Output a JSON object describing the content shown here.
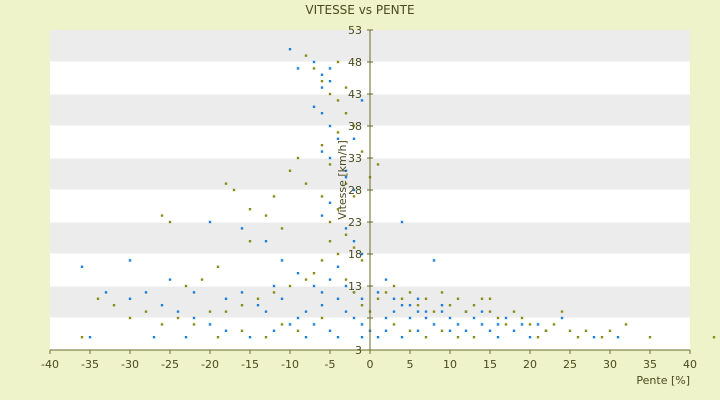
{
  "chart_data": {
    "type": "scatter",
    "title": "VITESSE vs PENTE",
    "xlabel": "Pente [%]",
    "ylabel": "Vitesse [km/h]",
    "xlim": [
      -40,
      40
    ],
    "ylim": [
      3,
      53
    ],
    "xticks": [
      -40,
      -35,
      -30,
      -25,
      -20,
      -15,
      -10,
      -5,
      0,
      5,
      10,
      15,
      20,
      25,
      30,
      35,
      40
    ],
    "yticks": [
      3,
      8,
      13,
      18,
      23,
      28,
      33,
      38,
      43,
      48,
      53
    ],
    "ytick_labels": [
      "3",
      "",
      "13",
      "18",
      "23",
      "28",
      "33",
      "38",
      "43",
      "48",
      "53"
    ],
    "grid": "horizontal alternating bands",
    "legend": "none",
    "colors": {
      "series_a": "#1e7fd6",
      "series_b": "#8c8c1a",
      "band": "#ececec",
      "plot_bg": "#ffffff"
    },
    "series": [
      {
        "color": "#1e7fd6",
        "points": [
          [
            -10,
            50
          ],
          [
            -9,
            47
          ],
          [
            -7,
            48
          ],
          [
            -6,
            46
          ],
          [
            -5,
            47
          ],
          [
            -6,
            44
          ],
          [
            -5,
            45
          ],
          [
            -7,
            41
          ],
          [
            -6,
            40
          ],
          [
            -5,
            38
          ],
          [
            -4,
            36
          ],
          [
            -6,
            34
          ],
          [
            -5,
            33
          ],
          [
            -3,
            31
          ],
          [
            -2,
            28
          ],
          [
            -5,
            26
          ],
          [
            -6,
            24
          ],
          [
            -3,
            22
          ],
          [
            -2,
            20
          ],
          [
            -1,
            18
          ],
          [
            -4,
            16
          ],
          [
            -5,
            14
          ],
          [
            -3,
            13
          ],
          [
            -2,
            12
          ],
          [
            -1,
            11
          ],
          [
            -6,
            10
          ],
          [
            -8,
            9
          ],
          [
            -9,
            8
          ],
          [
            -10,
            7
          ],
          [
            -12,
            6
          ],
          [
            -15,
            5
          ],
          [
            -18,
            6
          ],
          [
            -20,
            7
          ],
          [
            -22,
            8
          ],
          [
            -24,
            9
          ],
          [
            -26,
            10
          ],
          [
            -30,
            11
          ],
          [
            -33,
            12
          ],
          [
            -36,
            16
          ],
          [
            -30,
            17
          ],
          [
            -20,
            23
          ],
          [
            -16,
            22
          ],
          [
            -13,
            20
          ],
          [
            -11,
            17
          ],
          [
            -9,
            15
          ],
          [
            -7,
            13
          ],
          [
            -6,
            12
          ],
          [
            -4,
            11
          ],
          [
            -3,
            9
          ],
          [
            -2,
            8
          ],
          [
            -1,
            7
          ],
          [
            0,
            6
          ],
          [
            1,
            5
          ],
          [
            2,
            8
          ],
          [
            3,
            9
          ],
          [
            4,
            10
          ],
          [
            5,
            8
          ],
          [
            6,
            9
          ],
          [
            7,
            8
          ],
          [
            8,
            7
          ],
          [
            9,
            9
          ],
          [
            10,
            8
          ],
          [
            11,
            7
          ],
          [
            12,
            6
          ],
          [
            13,
            8
          ],
          [
            14,
            7
          ],
          [
            15,
            6
          ],
          [
            16,
            7
          ],
          [
            17,
            8
          ],
          [
            18,
            6
          ],
          [
            20,
            5
          ],
          [
            22,
            6
          ],
          [
            24,
            8
          ],
          [
            28,
            5
          ],
          [
            31,
            5
          ],
          [
            -1,
            42
          ],
          [
            -2,
            36
          ],
          [
            -3,
            30
          ],
          [
            4,
            23
          ],
          [
            8,
            17
          ],
          [
            2,
            14
          ],
          [
            1,
            12
          ],
          [
            3,
            11
          ],
          [
            5,
            10
          ],
          [
            7,
            9
          ],
          [
            6,
            11
          ],
          [
            9,
            10
          ],
          [
            -4,
            5
          ],
          [
            -5,
            6
          ],
          [
            -7,
            7
          ],
          [
            -8,
            5
          ],
          [
            -14,
            10
          ],
          [
            -16,
            12
          ],
          [
            -18,
            11
          ],
          [
            -22,
            12
          ],
          [
            -25,
            14
          ],
          [
            -28,
            12
          ],
          [
            -35,
            5
          ],
          [
            -27,
            5
          ],
          [
            -23,
            5
          ],
          [
            -11,
            11
          ],
          [
            -12,
            13
          ],
          [
            -13,
            9
          ],
          [
            -1,
            5
          ],
          [
            2,
            6
          ],
          [
            4,
            5
          ],
          [
            6,
            6
          ],
          [
            10,
            6
          ],
          [
            12,
            9
          ],
          [
            14,
            9
          ],
          [
            16,
            5
          ],
          [
            19,
            7
          ],
          [
            21,
            7
          ]
        ]
      },
      {
        "color": "#8c8c1a",
        "points": [
          [
            -8,
            49
          ],
          [
            -7,
            47
          ],
          [
            -6,
            45
          ],
          [
            -4,
            48
          ],
          [
            -5,
            43
          ],
          [
            -3,
            40
          ],
          [
            -4,
            37
          ],
          [
            -6,
            35
          ],
          [
            -5,
            32
          ],
          [
            -3,
            29
          ],
          [
            -2,
            27
          ],
          [
            -4,
            25
          ],
          [
            -5,
            23
          ],
          [
            -3,
            21
          ],
          [
            -2,
            19
          ],
          [
            -1,
            17
          ],
          [
            -6,
            17
          ],
          [
            -7,
            15
          ],
          [
            -8,
            14
          ],
          [
            -10,
            13
          ],
          [
            -12,
            12
          ],
          [
            -14,
            11
          ],
          [
            -16,
            10
          ],
          [
            -18,
            9
          ],
          [
            -20,
            9
          ],
          [
            -22,
            7
          ],
          [
            -24,
            8
          ],
          [
            -26,
            7
          ],
          [
            -28,
            9
          ],
          [
            -30,
            8
          ],
          [
            -32,
            10
          ],
          [
            -34,
            11
          ],
          [
            -36,
            5
          ],
          [
            -26,
            24
          ],
          [
            -25,
            23
          ],
          [
            -18,
            29
          ],
          [
            -17,
            28
          ],
          [
            -15,
            25
          ],
          [
            -12,
            27
          ],
          [
            -10,
            31
          ],
          [
            -9,
            33
          ],
          [
            -8,
            29
          ],
          [
            -6,
            27
          ],
          [
            -5,
            20
          ],
          [
            -4,
            18
          ],
          [
            -3,
            14
          ],
          [
            -2,
            12
          ],
          [
            -1,
            10
          ],
          [
            0,
            9
          ],
          [
            1,
            32
          ],
          [
            1,
            11
          ],
          [
            2,
            12
          ],
          [
            3,
            13
          ],
          [
            4,
            11
          ],
          [
            5,
            12
          ],
          [
            6,
            10
          ],
          [
            7,
            11
          ],
          [
            8,
            9
          ],
          [
            9,
            12
          ],
          [
            10,
            10
          ],
          [
            11,
            11
          ],
          [
            12,
            9
          ],
          [
            13,
            10
          ],
          [
            14,
            11
          ],
          [
            15,
            9
          ],
          [
            16,
            8
          ],
          [
            17,
            7
          ],
          [
            18,
            9
          ],
          [
            19,
            8
          ],
          [
            20,
            7
          ],
          [
            21,
            5
          ],
          [
            22,
            6
          ],
          [
            23,
            7
          ],
          [
            24,
            9
          ],
          [
            25,
            6
          ],
          [
            26,
            5
          ],
          [
            27,
            6
          ],
          [
            29,
            5
          ],
          [
            30,
            6
          ],
          [
            32,
            7
          ],
          [
            35,
            5
          ],
          [
            43,
            5
          ],
          [
            -11,
            22
          ],
          [
            -13,
            24
          ],
          [
            -15,
            20
          ],
          [
            -19,
            16
          ],
          [
            -21,
            14
          ],
          [
            -23,
            13
          ],
          [
            -2,
            38
          ],
          [
            -1,
            34
          ],
          [
            0,
            30
          ],
          [
            -3,
            44
          ],
          [
            -4,
            42
          ],
          [
            3,
            7
          ],
          [
            5,
            6
          ],
          [
            7,
            5
          ],
          [
            9,
            6
          ],
          [
            11,
            5
          ],
          [
            13,
            5
          ],
          [
            15,
            11
          ],
          [
            -6,
            8
          ],
          [
            -9,
            6
          ],
          [
            -11,
            7
          ],
          [
            -13,
            5
          ],
          [
            -16,
            6
          ],
          [
            -19,
            5
          ]
        ]
      }
    ]
  }
}
